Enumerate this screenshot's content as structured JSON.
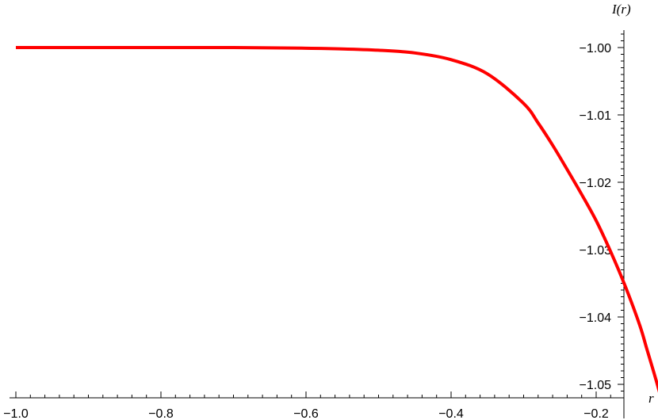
{
  "chart_data": {
    "type": "line",
    "xlabel": "r",
    "ylabel": "I(r)",
    "xlim": [
      -1.0,
      -0.095
    ],
    "ylim": [
      -1.052,
      -0.997
    ],
    "xticks": [
      -1.0,
      -0.8,
      -0.6,
      -0.4,
      -0.2
    ],
    "xtick_labels": [
      "−1.0",
      "−0.8",
      "−0.6",
      "−0.4",
      "−0.2"
    ],
    "yticks": [
      -1.0,
      -1.01,
      -1.02,
      -1.03,
      -1.04,
      -1.05
    ],
    "ytick_labels": [
      "−1.00",
      "−1.01",
      "−1.02",
      "−1.03",
      "−1.04",
      "−1.05"
    ],
    "grid": false,
    "series": [
      {
        "color": "#ff0000",
        "x": [
          -1.0,
          -0.9,
          -0.8,
          -0.7,
          -0.6,
          -0.55,
          -0.5,
          -0.45,
          -0.4,
          -0.35,
          -0.3,
          -0.28,
          -0.26,
          -0.24,
          -0.22,
          -0.2,
          -0.18,
          -0.16,
          -0.14,
          -0.13,
          -0.12,
          -0.11
        ],
        "y": [
          -1.0,
          -1.0,
          -1.0,
          -1.0,
          -1.0001,
          -1.0002,
          -1.0004,
          -1.0008,
          -1.0018,
          -1.0039,
          -1.0083,
          -1.0112,
          -1.0145,
          -1.0181,
          -1.0218,
          -1.0257,
          -1.0303,
          -1.0354,
          -1.0412,
          -1.0448,
          -1.0484,
          -1.0522
        ]
      }
    ]
  }
}
